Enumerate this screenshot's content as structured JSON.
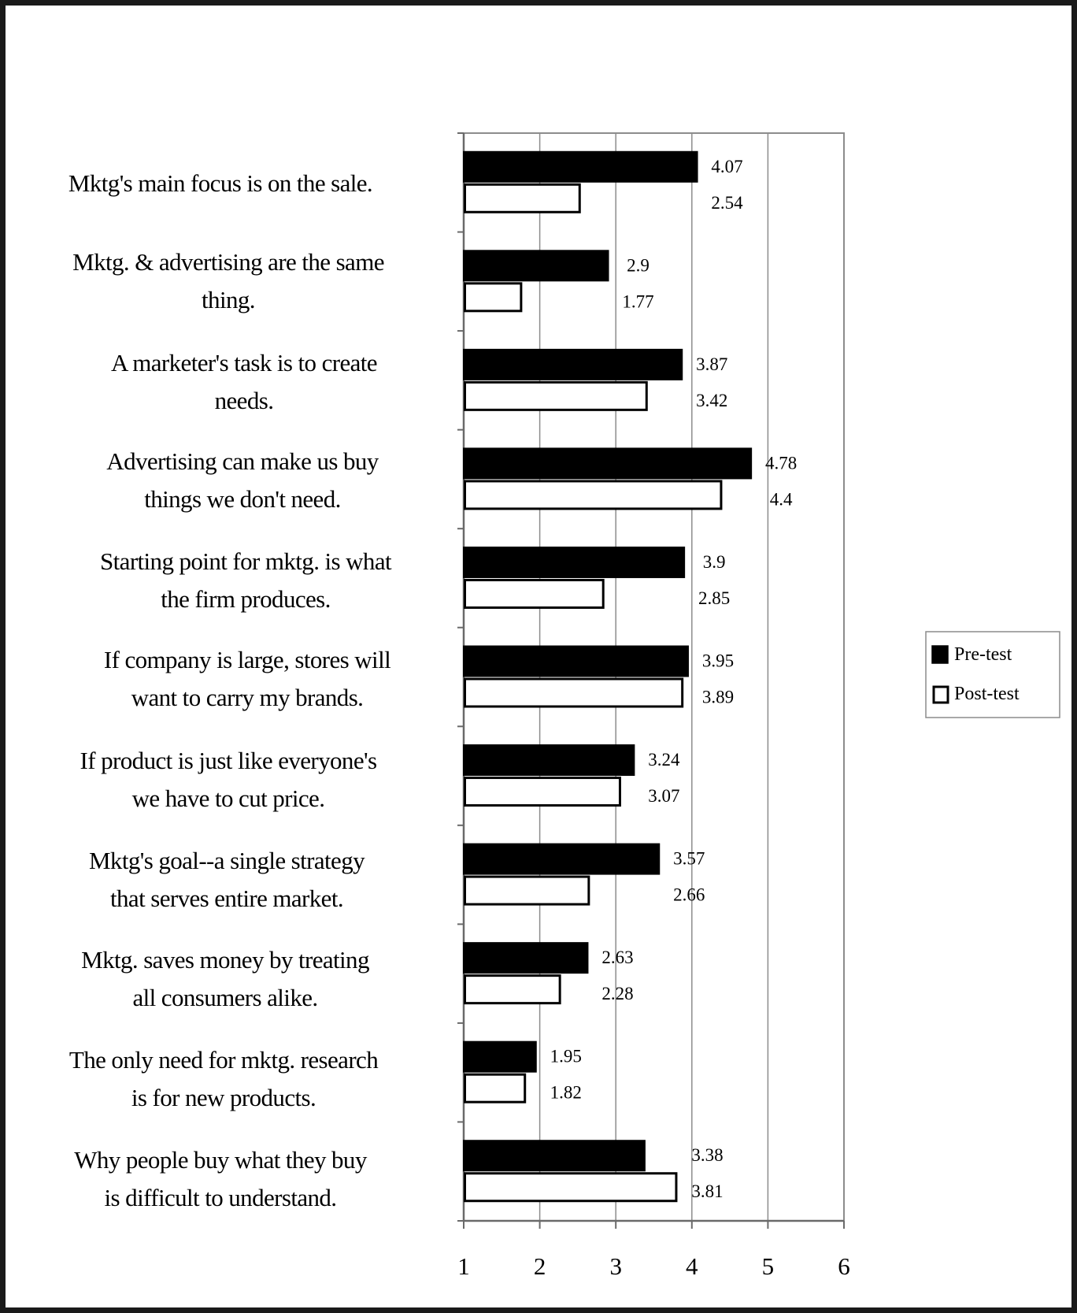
{
  "chart_data": {
    "type": "bar",
    "orientation": "horizontal",
    "title": "",
    "categories": [
      "Mktg's main focus is on the sale.",
      "Mktg. & advertising are the same thing.",
      "A marketer's task is to create needs.",
      "Advertising can make us buy things we don't need.",
      "Starting point for mktg. is what the firm produces.",
      "If company is large, stores will want to carry my brands.",
      "If product is just like everyone's we have to cut price.",
      "Mktg's goal--a single strategy that serves entire market.",
      "Mktg. saves money by treating all consumers alike.",
      "The only need for mktg. research is for new products.",
      "Why people buy what they buy is difficult to understand."
    ],
    "category_lines": [
      [
        "Mktg's main focus is on the sale."
      ],
      [
        "Mktg. & advertising are the same",
        "thing."
      ],
      [
        "A marketer's task is to create",
        "needs."
      ],
      [
        "Advertising can make us buy",
        "things we don't need."
      ],
      [
        "Starting point for mktg. is what",
        "the firm produces."
      ],
      [
        "If company is large, stores will",
        "want to carry my brands."
      ],
      [
        "If product is just like everyone's",
        "we have to cut price."
      ],
      [
        "Mktg's goal--a single strategy",
        "that serves entire market."
      ],
      [
        "Mktg. saves money by treating",
        "all consumers alike."
      ],
      [
        "The only need for mktg. research",
        "is for new products."
      ],
      [
        "Why people buy what they buy",
        "is difficult to understand."
      ]
    ],
    "series": [
      {
        "name": "Pre-test",
        "color": "#000000",
        "values": [
          4.07,
          2.9,
          3.87,
          4.78,
          3.9,
          3.95,
          3.24,
          3.57,
          2.63,
          1.95,
          3.38
        ],
        "labels": [
          "4.07",
          "2.9",
          "3.87",
          "4.78",
          "3.9",
          "3.95",
          "3.24",
          "3.57",
          "2.63",
          "1.95",
          "3.38"
        ]
      },
      {
        "name": "Post-test",
        "color": "#ffffff",
        "values": [
          2.54,
          1.77,
          3.42,
          4.4,
          2.85,
          3.89,
          3.07,
          2.66,
          2.28,
          1.82,
          3.81
        ],
        "labels": [
          "2.54",
          "1.77",
          "3.42",
          "4.4",
          "2.85",
          "3.89",
          "3.07",
          "2.66",
          "2.28",
          "1.82",
          "3.81"
        ]
      }
    ],
    "xlim": [
      1,
      6
    ],
    "x_ticks": [
      "1",
      "2",
      "3",
      "4",
      "5",
      "6"
    ],
    "xlabel": "",
    "ylabel": "",
    "grid": "vertical",
    "legend_position": "right"
  }
}
